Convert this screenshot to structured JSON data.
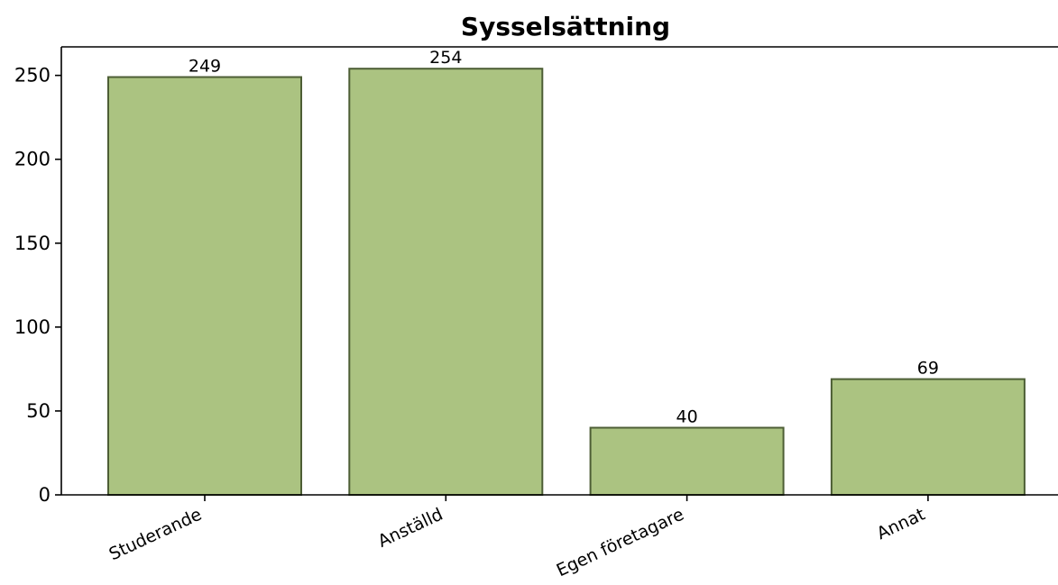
{
  "chart_data": {
    "type": "bar",
    "title": "Sysselsättning",
    "xlabel": "",
    "ylabel": "",
    "categories": [
      "Studerande",
      "Anställd",
      "Egen företagare",
      "Annat"
    ],
    "values": [
      249,
      254,
      40,
      69
    ],
    "data_labels": [
      "249",
      "254",
      "40",
      "69"
    ],
    "yticks": [
      0,
      50,
      100,
      150,
      200,
      250
    ],
    "ylim": [
      0,
      267
    ],
    "grid": false,
    "colors": {
      "bar_fill": "#abc381",
      "bar_edge": "#4d5e35",
      "axis": "#000000"
    }
  }
}
